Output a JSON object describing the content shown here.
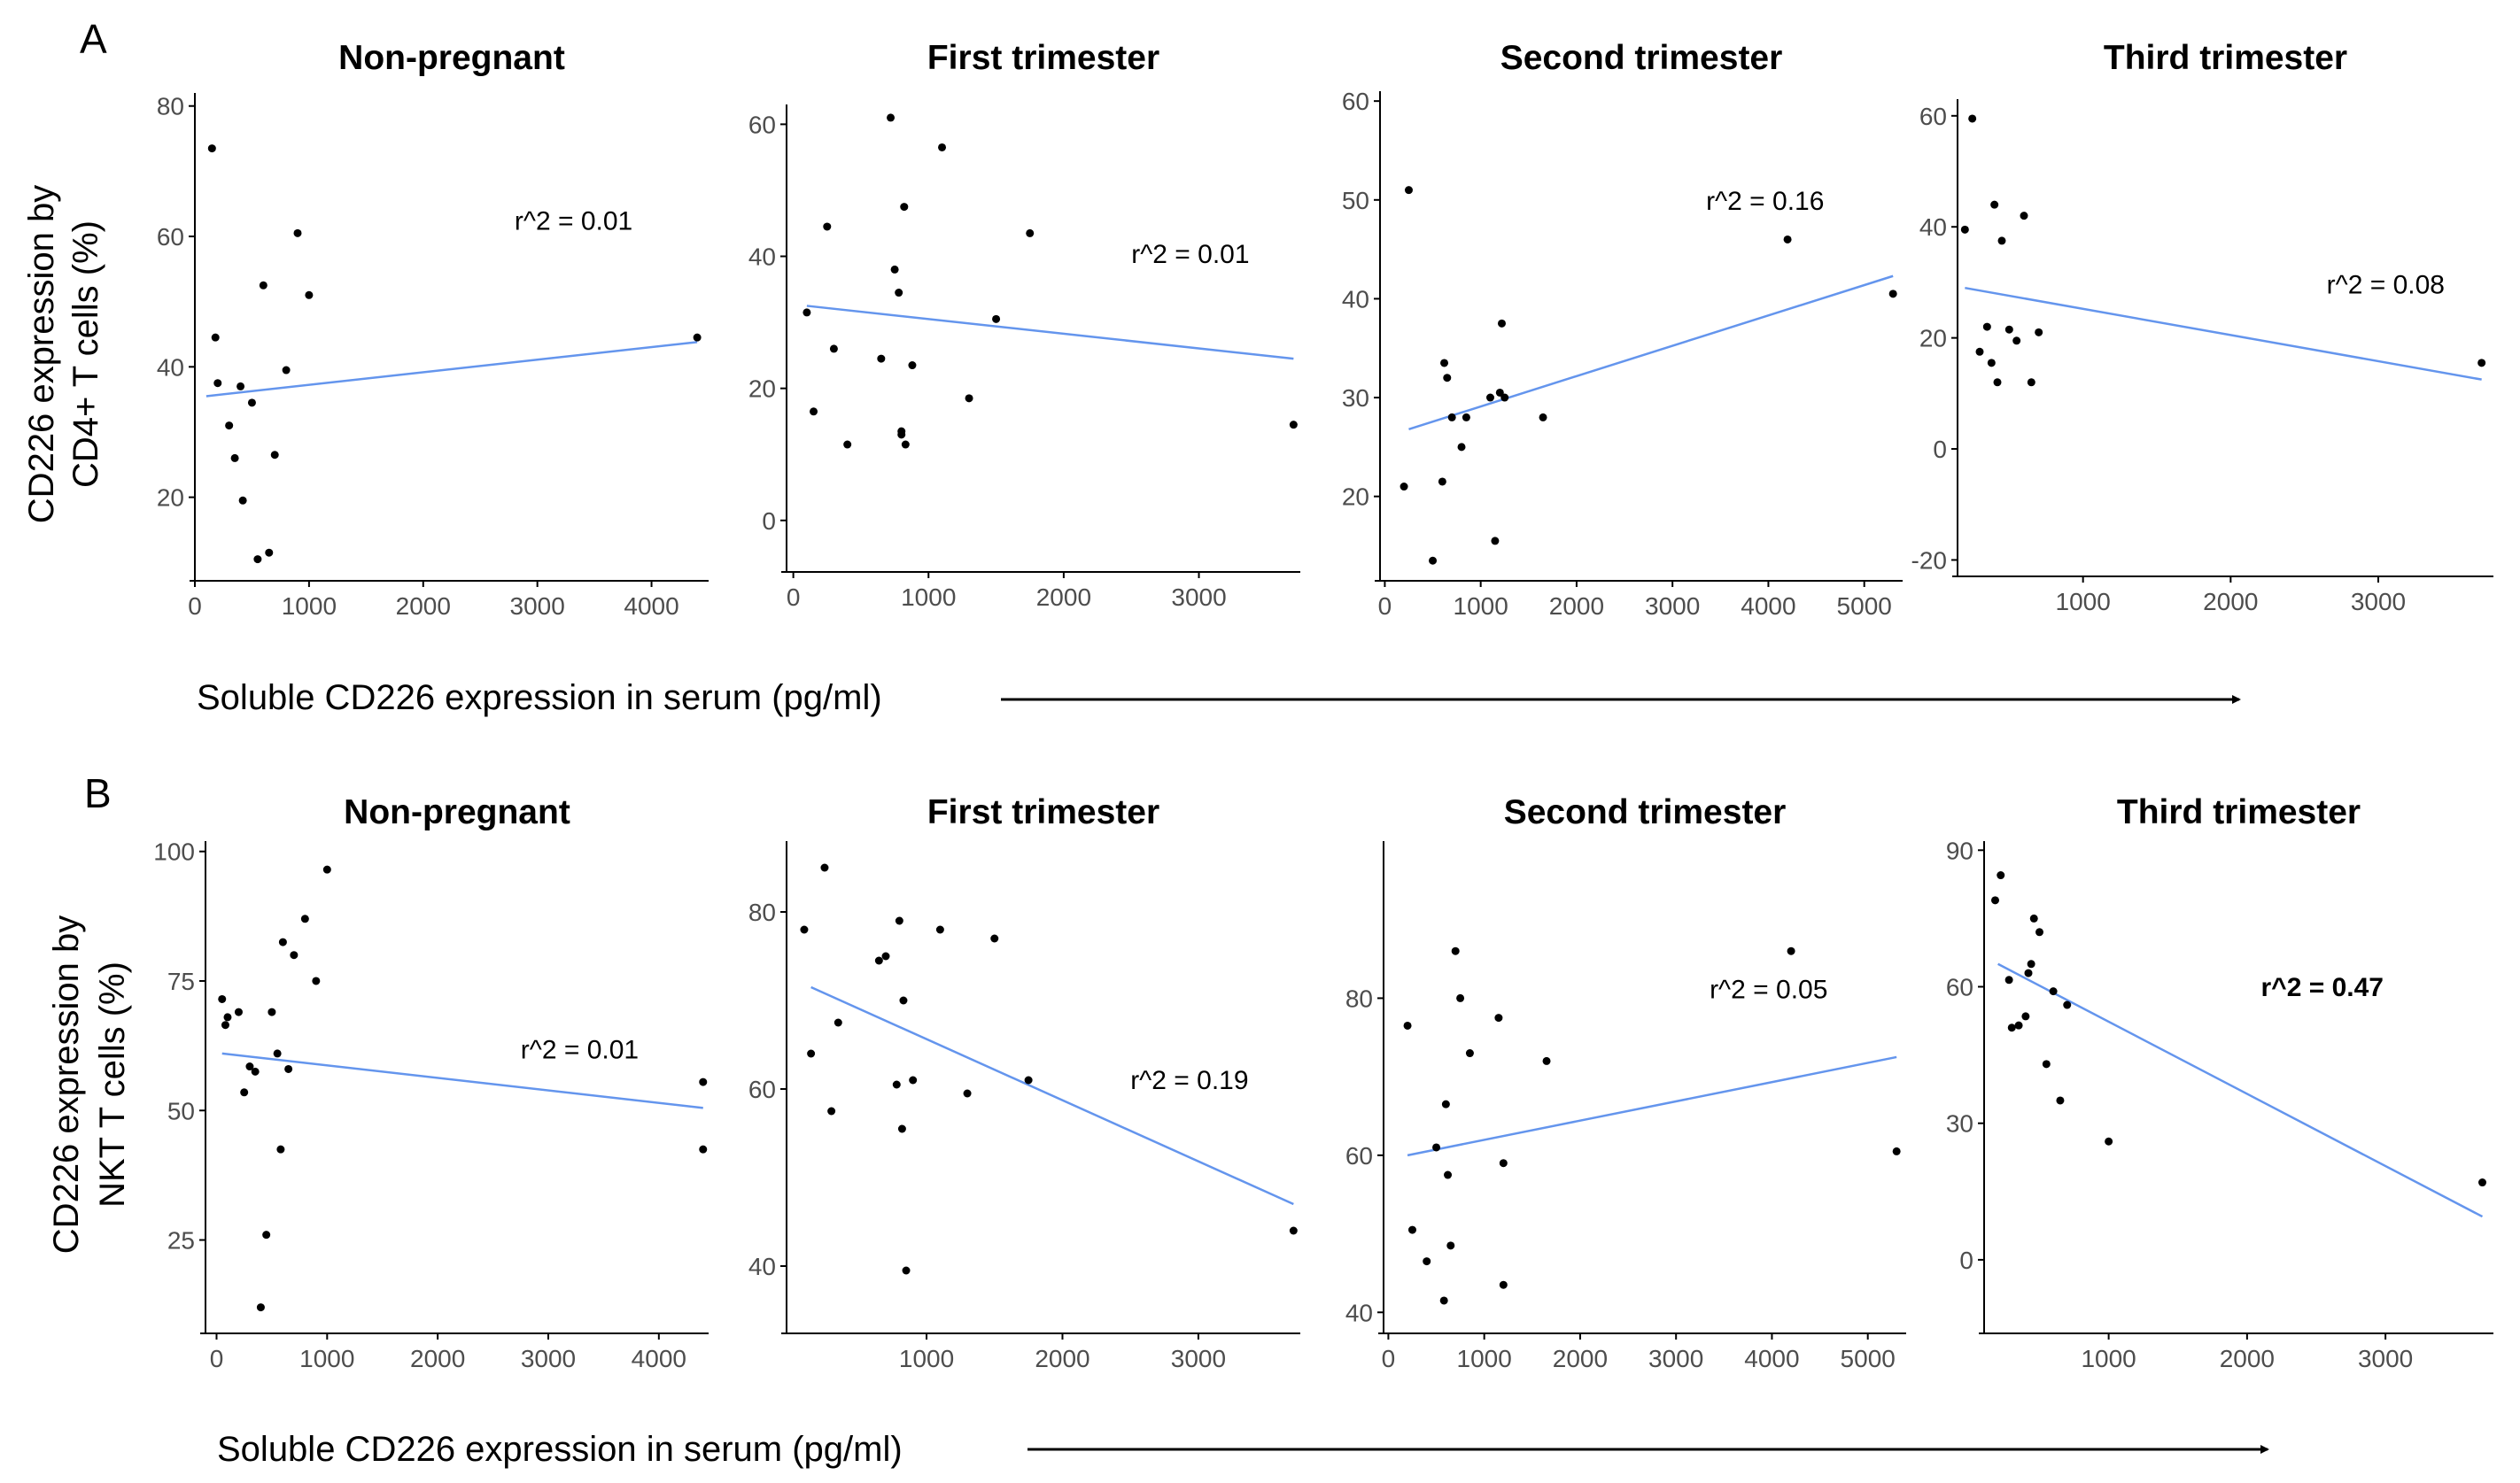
{
  "figure": {
    "rows": [
      {
        "letter": "A",
        "ylabel_line1": "CD226 expression by",
        "ylabel_line2": "CD4+ T cells (%)",
        "xlabel": "Soluble CD226 expression in serum (pg/ml)"
      },
      {
        "letter": "B",
        "ylabel_line1": "CD226 expression by",
        "ylabel_line2": "NKT T cells (%)",
        "xlabel": "Soluble CD226 expression in serum (pg/ml)"
      }
    ],
    "colors": {
      "fit_line": "#6495ED",
      "points": "#000000",
      "axis": "#000000",
      "tick_label": "#4d4d4d"
    }
  },
  "chart_data": [
    {
      "type": "scatter",
      "row": 0,
      "col": 0,
      "title": "Non-pregnant",
      "xlim": [
        0,
        4500
      ],
      "ylim": [
        8,
        82
      ],
      "xticks": [
        0,
        1000,
        2000,
        3000,
        4000
      ],
      "yticks": [
        20,
        40,
        60,
        80
      ],
      "annotation": "r^2 = 0.01",
      "annotation_bold": false,
      "annotation_at": [
        2800,
        61
      ],
      "fit": {
        "x": [
          100,
          4400
        ],
        "y": [
          35.5,
          43.8
        ]
      },
      "x": [
        150,
        200,
        300,
        350,
        420,
        500,
        600,
        700,
        800,
        900,
        1000,
        180,
        650,
        550,
        400,
        4400
      ],
      "y": [
        73.5,
        37.5,
        31,
        26,
        19.5,
        34.5,
        52.5,
        26.5,
        39.5,
        60.5,
        51,
        44.5,
        11.5,
        10.5,
        37,
        44.5
      ]
    },
    {
      "type": "scatter",
      "row": 0,
      "col": 1,
      "title": "First trimester",
      "xlim": [
        -50,
        3750
      ],
      "ylim": [
        -7,
        63
      ],
      "xticks": [
        0,
        1000,
        2000,
        3000
      ],
      "yticks": [
        0,
        20,
        40,
        60
      ],
      "annotation": "r^2 = 0.01",
      "annotation_bold": false,
      "annotation_at": [
        2500,
        39
      ],
      "fit": {
        "x": [
          100,
          3700
        ],
        "y": [
          32.5,
          24.5
        ]
      },
      "x": [
        100,
        150,
        250,
        300,
        400,
        650,
        720,
        750,
        780,
        800,
        820,
        830,
        880,
        1100,
        1300,
        1500,
        1750,
        3700,
        800
      ],
      "y": [
        31.5,
        16.5,
        44.5,
        26,
        11.5,
        24.5,
        61,
        38,
        34.5,
        13.5,
        47.5,
        11.5,
        23.5,
        56.5,
        18.5,
        30.5,
        43.5,
        14.5,
        13
      ]
    },
    {
      "type": "scatter",
      "row": 0,
      "col": 2,
      "title": "Second trimester",
      "xlim": [
        -50,
        5400
      ],
      "ylim": [
        12,
        61
      ],
      "xticks": [
        0,
        1000,
        2000,
        3000,
        4000,
        5000
      ],
      "yticks": [
        20,
        30,
        40,
        50,
        60
      ],
      "annotation": "r^2 = 0.16",
      "annotation_bold": false,
      "annotation_at": [
        3350,
        49
      ],
      "fit": {
        "x": [
          250,
          5300
        ],
        "y": [
          26.8,
          42.3
        ]
      },
      "x": [
        200,
        250,
        500,
        600,
        620,
        650,
        700,
        800,
        850,
        1100,
        1150,
        1200,
        1220,
        1250,
        1650,
        4200,
        5300
      ],
      "y": [
        21,
        51,
        13.5,
        21.5,
        33.5,
        32,
        28,
        25,
        28,
        30,
        15.5,
        30.5,
        37.5,
        30,
        28,
        46,
        40.5
      ]
    },
    {
      "type": "scatter",
      "row": 0,
      "col": 3,
      "title": "Third trimester",
      "xlim": [
        150,
        3780
      ],
      "ylim": [
        -22,
        63
      ],
      "xticks": [
        1000,
        2000,
        3000
      ],
      "yticks": [
        -20,
        0,
        20,
        40,
        60
      ],
      "annotation": "r^2 = 0.08",
      "annotation_bold": false,
      "annotation_at": [
        2650,
        28
      ],
      "fit": {
        "x": [
          200,
          3700
        ],
        "y": [
          29,
          12.5
        ]
      },
      "x": [
        200,
        250,
        300,
        350,
        380,
        400,
        420,
        450,
        500,
        550,
        600,
        650,
        700,
        3700
      ],
      "y": [
        39.5,
        59.5,
        17.5,
        22,
        15.5,
        44,
        12,
        37.5,
        21.5,
        19.5,
        42,
        12,
        21,
        15.5
      ]
    },
    {
      "type": "scatter",
      "row": 1,
      "col": 0,
      "title": "Non-pregnant",
      "xlim": [
        -100,
        4450
      ],
      "ylim": [
        8,
        102
      ],
      "xticks": [
        0,
        1000,
        2000,
        3000,
        4000
      ],
      "yticks": [
        25,
        50,
        75,
        100
      ],
      "annotation": "r^2 = 0.01",
      "annotation_bold": false,
      "annotation_at": [
        2750,
        60
      ],
      "fit": {
        "x": [
          50,
          4400
        ],
        "y": [
          61,
          50.5
        ]
      },
      "x": [
        50,
        80,
        100,
        200,
        250,
        300,
        350,
        400,
        450,
        500,
        550,
        580,
        600,
        650,
        700,
        800,
        900,
        1000,
        4400,
        4400
      ],
      "y": [
        71.5,
        66.5,
        68,
        69,
        53.5,
        58.5,
        57.5,
        12,
        26,
        69,
        61,
        42.5,
        82.5,
        58,
        80,
        87,
        75,
        96.5,
        42.5,
        55.5
      ]
    },
    {
      "type": "scatter",
      "row": 1,
      "col": 1,
      "title": "First trimester",
      "xlim": [
        -30,
        3750
      ],
      "ylim": [
        33,
        88
      ],
      "xticks": [
        1000,
        2000,
        3000
      ],
      "yticks": [
        40,
        60,
        80
      ],
      "annotation": "r^2 = 0.19",
      "annotation_bold": false,
      "annotation_at": [
        2500,
        60
      ],
      "fit": {
        "x": [
          150,
          3700
        ],
        "y": [
          71.5,
          47
        ]
      },
      "x": [
        100,
        150,
        250,
        300,
        350,
        650,
        700,
        780,
        800,
        820,
        830,
        850,
        900,
        1100,
        1300,
        1500,
        1750,
        3700
      ],
      "y": [
        78,
        64,
        85,
        57.5,
        67.5,
        74.5,
        75,
        60.5,
        79,
        55.5,
        70,
        39.5,
        61,
        78,
        59.5,
        77,
        61,
        44
      ]
    },
    {
      "type": "scatter",
      "row": 1,
      "col": 2,
      "title": "Second trimester",
      "xlim": [
        -50,
        5400
      ],
      "ylim": [
        38,
        100
      ],
      "xticks": [
        0,
        1000,
        2000,
        3000,
        4000,
        5000
      ],
      "yticks": [
        40,
        60,
        80
      ],
      "annotation": "r^2 = 0.05",
      "annotation_bold": false,
      "annotation_at": [
        3350,
        80
      ],
      "fit": {
        "x": [
          200,
          5300
        ],
        "y": [
          60,
          72.5
        ]
      },
      "x": [
        200,
        250,
        400,
        500,
        580,
        600,
        620,
        650,
        700,
        750,
        850,
        1150,
        1200,
        1200,
        1650,
        4200,
        5300
      ],
      "y": [
        76.5,
        50.5,
        46.5,
        61,
        41.5,
        66.5,
        57.5,
        48.5,
        86,
        80,
        73,
        77.5,
        59,
        43.5,
        72,
        86,
        60.5
      ]
    },
    {
      "type": "scatter",
      "row": 1,
      "col": 3,
      "title": "Third trimester",
      "xlim": [
        100,
        3780
      ],
      "ylim": [
        -15,
        92
      ],
      "xticks": [
        1000,
        2000,
        3000
      ],
      "yticks": [
        0,
        30,
        60,
        90
      ],
      "annotation": "r^2 = 0.47",
      "annotation_bold": true,
      "annotation_at": [
        2100,
        58
      ],
      "fit": {
        "x": [
          200,
          3700
        ],
        "y": [
          65,
          9.5
        ]
      },
      "x": [
        180,
        220,
        280,
        300,
        350,
        400,
        420,
        440,
        460,
        500,
        550,
        600,
        650,
        700,
        1000,
        3700
      ],
      "y": [
        79,
        84.5,
        61.5,
        51,
        51.5,
        53.5,
        63,
        65,
        75,
        72,
        43,
        59,
        35,
        56,
        26,
        17
      ]
    }
  ]
}
